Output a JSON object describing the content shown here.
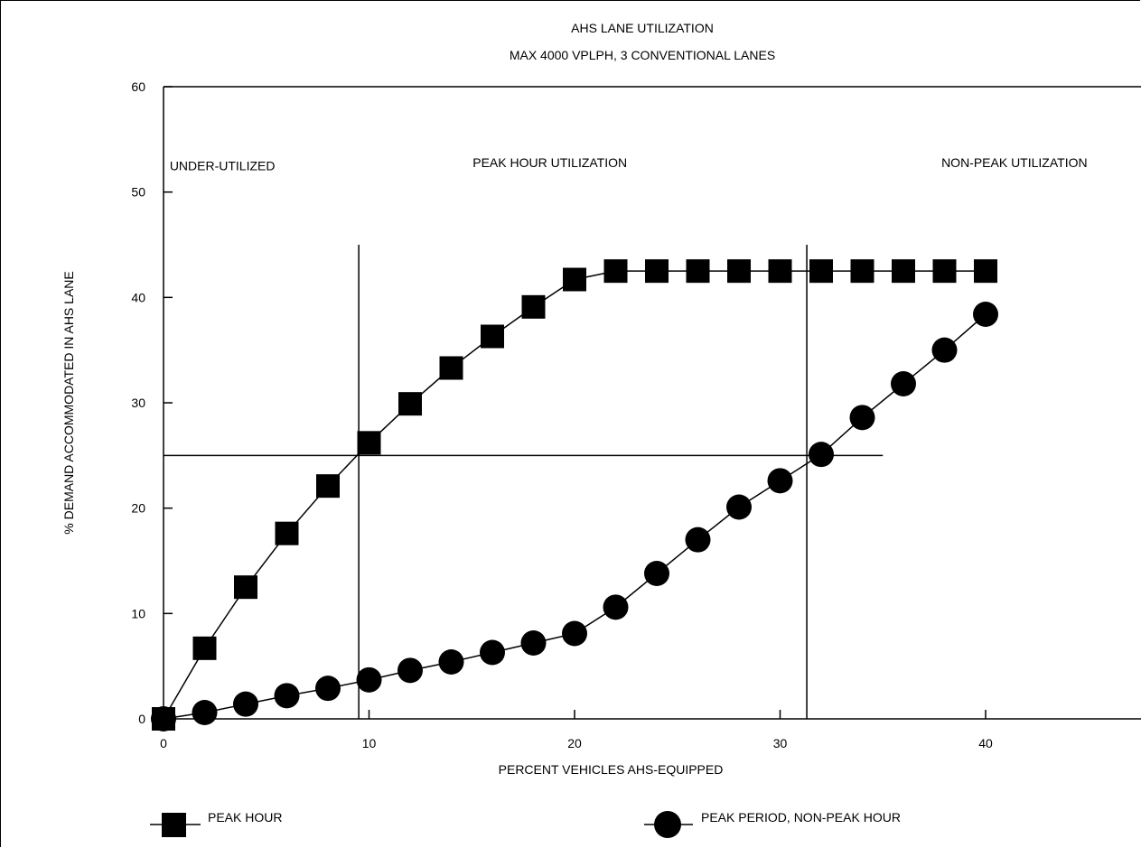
{
  "chart_data": {
    "type": "line",
    "title": "AHS LANE UTILIZATION",
    "subtitle": "MAX 4000 VPLPH, 3 CONVENTIONAL LANES",
    "xlabel": "PERCENT VEHICLES AHS-EQUIPPED",
    "ylabel": "% DEMAND ACCOMMODATED IN AHS LANE",
    "xlim": [
      0,
      47
    ],
    "ylim": [
      0,
      60
    ],
    "x_ticks": [
      0,
      10,
      20,
      30,
      40
    ],
    "y_ticks": [
      0,
      10,
      20,
      30,
      40,
      50,
      60
    ],
    "x_tick_labels": [
      "0",
      "10",
      "20",
      "30",
      "40"
    ],
    "y_tick_labels": [
      "0",
      "10",
      "20",
      "30",
      "40",
      "50",
      "60"
    ],
    "grid": false,
    "legend": "bottom",
    "x": [
      0,
      2,
      4,
      6,
      8,
      10,
      12,
      14,
      16,
      18,
      20,
      22,
      24,
      26,
      28,
      30,
      32,
      34,
      36,
      38,
      40
    ],
    "series": [
      {
        "name": "PEAK HOUR",
        "marker": "square",
        "values": [
          0,
          6.7,
          12.5,
          17.6,
          22.1,
          26.2,
          29.9,
          33.3,
          36.3,
          39.1,
          41.7,
          42.5,
          42.5,
          42.5,
          42.5,
          42.5,
          42.5,
          42.5,
          42.5,
          42.5,
          42.5
        ]
      },
      {
        "name": "PEAK PERIOD, NON-PEAK HOUR",
        "marker": "circle",
        "values": [
          0,
          0.6,
          1.4,
          2.2,
          2.9,
          3.7,
          4.6,
          5.4,
          6.3,
          7.2,
          8.1,
          10.6,
          13.8,
          17.0,
          20.1,
          22.6,
          25.1,
          28.6,
          31.8,
          35.0,
          38.4
        ]
      }
    ],
    "reference_lines": [
      {
        "orientation": "vertical",
        "x": 9.5,
        "y_range": [
          0,
          45
        ]
      },
      {
        "orientation": "vertical",
        "x": 31.3,
        "y_range": [
          0,
          45
        ]
      },
      {
        "orientation": "horizontal",
        "y": 25,
        "x_range": [
          0,
          35
        ]
      }
    ],
    "annotations": [
      {
        "text": "UNDER-UTILIZED",
        "x": 0.3,
        "y": 52.5
      },
      {
        "text": "PEAK HOUR UTILIZATION",
        "x": 18.8,
        "y": 52.8
      },
      {
        "text": "NON-PEAK UTILIZATION",
        "x": 41.4,
        "y": 52.8
      }
    ]
  }
}
